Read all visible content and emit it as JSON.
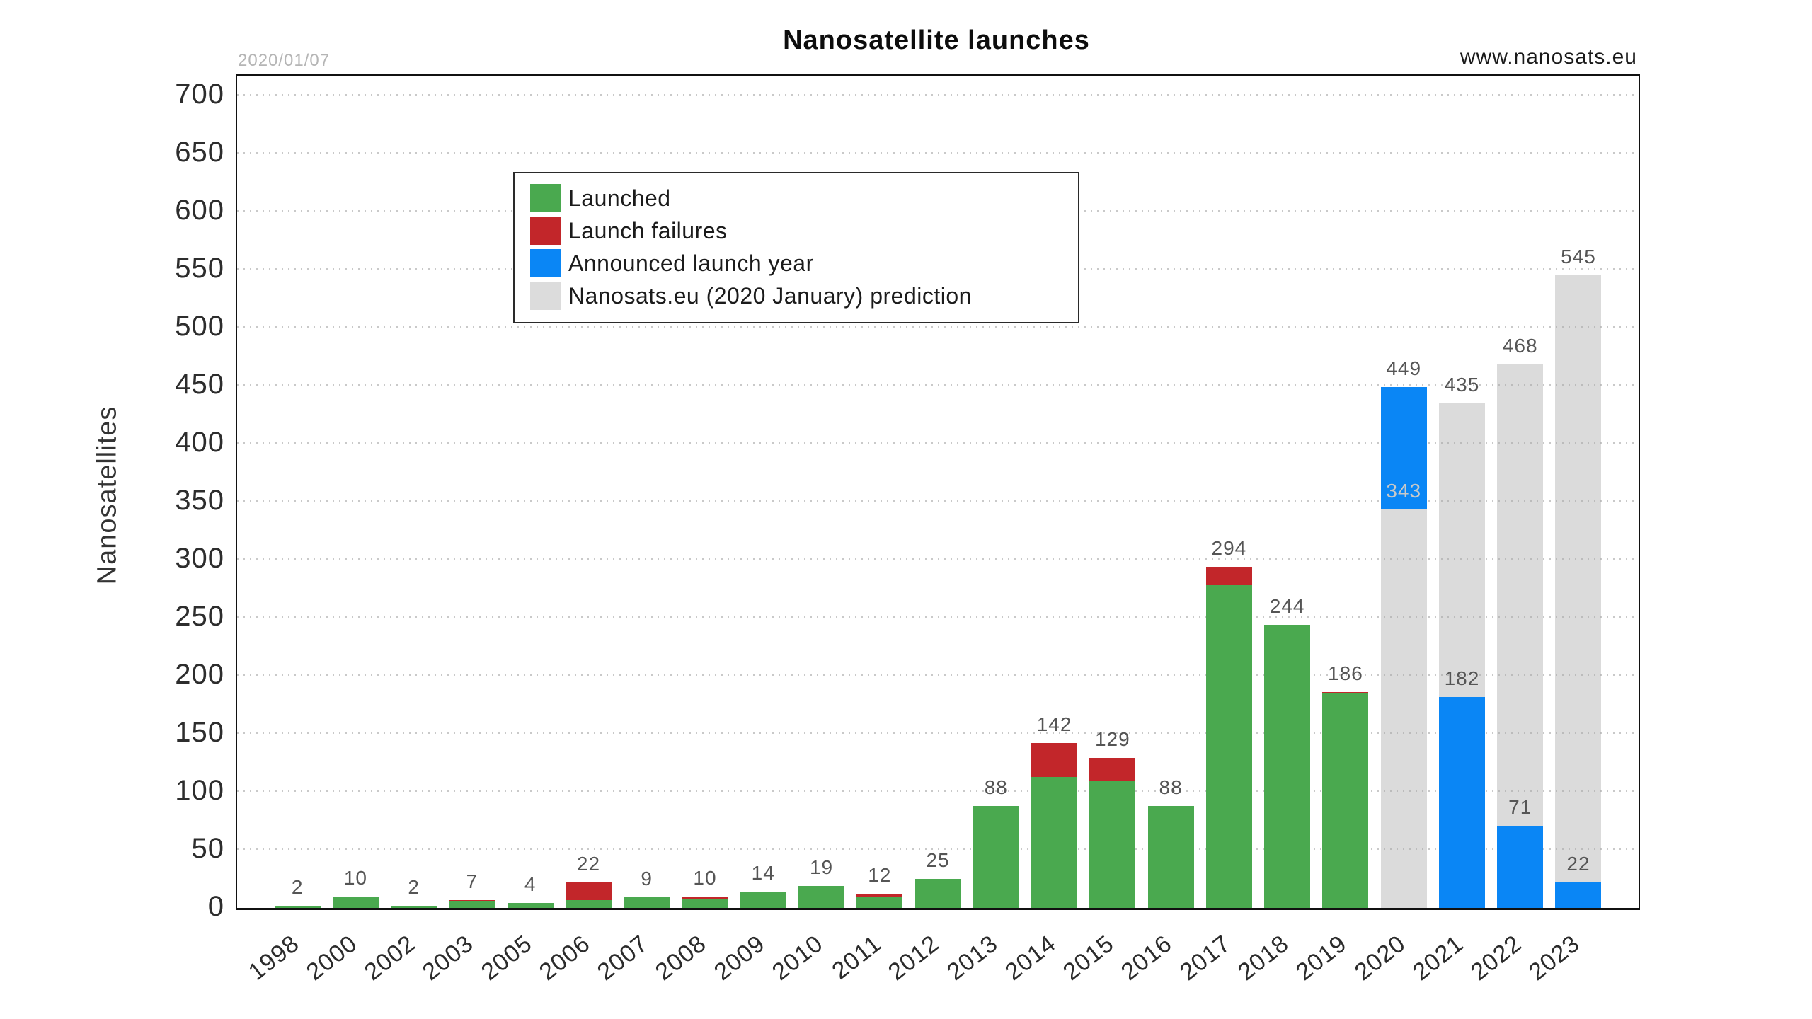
{
  "header": {
    "date_stamp": "2020/01/07",
    "website": "www.nanosats.eu"
  },
  "chart_data": {
    "type": "bar",
    "stacked": true,
    "title": "Nanosatellite launches",
    "xlabel": "",
    "ylabel": "Nanosatellites",
    "ylim": [
      0,
      717
    ],
    "ytick_step": 50,
    "yticks": [
      0,
      50,
      100,
      150,
      200,
      250,
      300,
      350,
      400,
      450,
      500,
      550,
      600,
      650,
      700
    ],
    "grid": "horizontal dotted gridlines at every 50",
    "legend": {
      "position": "upper left",
      "entries": [
        {
          "label": "Launched",
          "color": "green"
        },
        {
          "label": "Launch failures",
          "color": "red"
        },
        {
          "label": "Announced launch year",
          "color": "blue"
        },
        {
          "label": "Nanosats.eu (2020 January) prediction",
          "color": "gray"
        }
      ]
    },
    "colors": {
      "green": "#4aa94f",
      "red": "#c2262a",
      "blue": "#0a86f5",
      "gray": "#dcdcdc",
      "gridline": "#c9c9c9",
      "bar_value_label": "#555555",
      "inner_label_light": "#c9c9c9",
      "date_stamp": "#b5b5b5"
    },
    "bars": [
      {
        "year": "1998",
        "total_label": "2",
        "segments": [
          {
            "series": "Launched",
            "color": "green",
            "value": 2
          }
        ]
      },
      {
        "year": "2000",
        "total_label": "10",
        "segments": [
          {
            "series": "Launched",
            "color": "green",
            "value": 10
          }
        ]
      },
      {
        "year": "2002",
        "total_label": "2",
        "segments": [
          {
            "series": "Launched",
            "color": "green",
            "value": 2
          }
        ]
      },
      {
        "year": "2003",
        "total_label": "7",
        "segments": [
          {
            "series": "Launched",
            "color": "green",
            "value": 6
          },
          {
            "series": "Launch failures",
            "color": "red",
            "value": 1
          }
        ]
      },
      {
        "year": "2005",
        "total_label": "4",
        "segments": [
          {
            "series": "Launched",
            "color": "green",
            "value": 4
          }
        ]
      },
      {
        "year": "2006",
        "total_label": "22",
        "segments": [
          {
            "series": "Launched",
            "color": "green",
            "value": 7
          },
          {
            "series": "Launch failures",
            "color": "red",
            "value": 15
          }
        ]
      },
      {
        "year": "2007",
        "total_label": "9",
        "segments": [
          {
            "series": "Launched",
            "color": "green",
            "value": 9
          }
        ]
      },
      {
        "year": "2008",
        "total_label": "10",
        "segments": [
          {
            "series": "Launched",
            "color": "green",
            "value": 8
          },
          {
            "series": "Launch failures",
            "color": "red",
            "value": 2
          }
        ]
      },
      {
        "year": "2009",
        "total_label": "14",
        "segments": [
          {
            "series": "Launched",
            "color": "green",
            "value": 14
          }
        ]
      },
      {
        "year": "2010",
        "total_label": "19",
        "segments": [
          {
            "series": "Launched",
            "color": "green",
            "value": 19
          }
        ]
      },
      {
        "year": "2011",
        "total_label": "12",
        "segments": [
          {
            "series": "Launched",
            "color": "green",
            "value": 9
          },
          {
            "series": "Launch failures",
            "color": "red",
            "value": 3
          }
        ]
      },
      {
        "year": "2012",
        "total_label": "25",
        "segments": [
          {
            "series": "Launched",
            "color": "green",
            "value": 25
          }
        ]
      },
      {
        "year": "2013",
        "total_label": "88",
        "segments": [
          {
            "series": "Launched",
            "color": "green",
            "value": 88
          }
        ]
      },
      {
        "year": "2014",
        "total_label": "142",
        "segments": [
          {
            "series": "Launched",
            "color": "green",
            "value": 113
          },
          {
            "series": "Launch failures",
            "color": "red",
            "value": 29
          }
        ]
      },
      {
        "year": "2015",
        "total_label": "129",
        "segments": [
          {
            "series": "Launched",
            "color": "green",
            "value": 109
          },
          {
            "series": "Launch failures",
            "color": "red",
            "value": 20
          }
        ]
      },
      {
        "year": "2016",
        "total_label": "88",
        "segments": [
          {
            "series": "Launched",
            "color": "green",
            "value": 88
          }
        ]
      },
      {
        "year": "2017",
        "total_label": "294",
        "segments": [
          {
            "series": "Launched",
            "color": "green",
            "value": 278
          },
          {
            "series": "Launch failures",
            "color": "red",
            "value": 16
          }
        ]
      },
      {
        "year": "2018",
        "total_label": "244",
        "segments": [
          {
            "series": "Launched",
            "color": "green",
            "value": 244
          }
        ]
      },
      {
        "year": "2019",
        "total_label": "186",
        "segments": [
          {
            "series": "Launched",
            "color": "green",
            "value": 185
          },
          {
            "series": "Launch failures",
            "color": "red",
            "value": 1
          }
        ]
      },
      {
        "year": "2020",
        "total_label": "449",
        "segments": [
          {
            "series": "Nanosats.eu (2020 January) prediction",
            "color": "gray",
            "value": 343
          },
          {
            "series": "Announced launch year",
            "color": "blue",
            "value": 106
          }
        ],
        "inner_label": {
          "text": "343",
          "tone": "light"
        }
      },
      {
        "year": "2021",
        "total_label": "435",
        "segments": [
          {
            "series": "Announced launch year",
            "color": "blue",
            "value": 182
          },
          {
            "series": "Nanosats.eu (2020 January) prediction",
            "color": "gray",
            "value": 253
          }
        ],
        "inner_label": {
          "text": "182",
          "tone": "dark"
        }
      },
      {
        "year": "2022",
        "total_label": "468",
        "segments": [
          {
            "series": "Announced launch year",
            "color": "blue",
            "value": 71
          },
          {
            "series": "Nanosats.eu (2020 January) prediction",
            "color": "gray",
            "value": 397
          }
        ],
        "inner_label": {
          "text": "71",
          "tone": "dark"
        }
      },
      {
        "year": "2023",
        "total_label": "545",
        "segments": [
          {
            "series": "Announced launch year",
            "color": "blue",
            "value": 22
          },
          {
            "series": "Nanosats.eu (2020 January) prediction",
            "color": "gray",
            "value": 523
          }
        ],
        "inner_label": {
          "text": "22",
          "tone": "dark"
        }
      }
    ]
  }
}
